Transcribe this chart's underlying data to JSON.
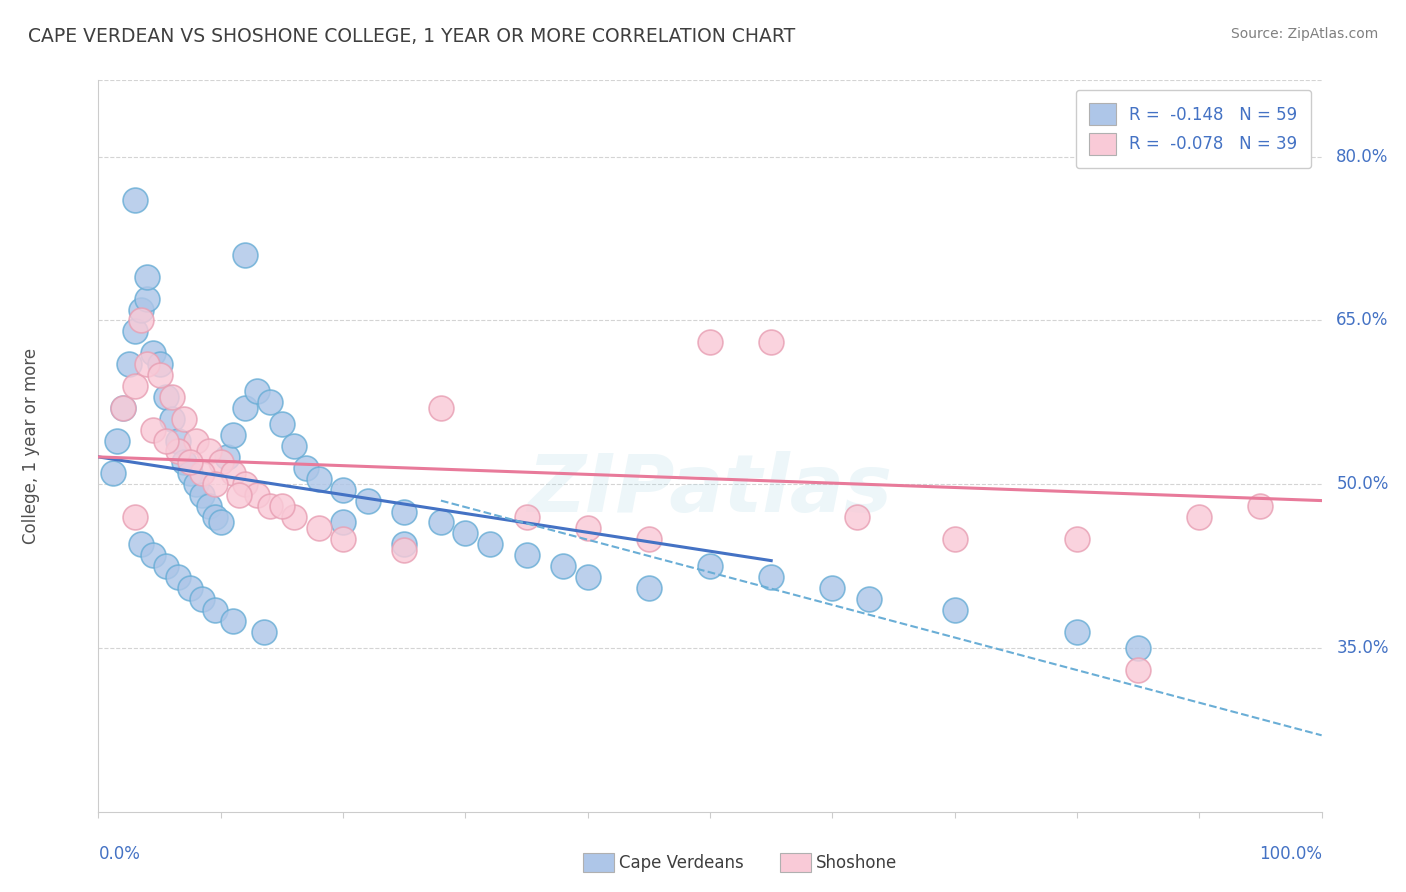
{
  "title": "CAPE VERDEAN VS SHOSHONE COLLEGE, 1 YEAR OR MORE CORRELATION CHART",
  "source_text": "Source: ZipAtlas.com",
  "ylabel": "College, 1 year or more",
  "xmin": 0.0,
  "xmax": 100.0,
  "ymin": 20.0,
  "ymax": 87.0,
  "right_yticks": [
    35.0,
    50.0,
    65.0,
    80.0
  ],
  "right_ytick_labels": [
    "35.0%",
    "50.0%",
    "65.0%",
    "80.0%"
  ],
  "legend_entries": [
    {
      "label": "R =  -0.148   N = 59",
      "color": "#aec6e8"
    },
    {
      "label": "R =  -0.078   N = 39",
      "color": "#f4b8c8"
    }
  ],
  "legend_bottom_labels": [
    "Cape Verdeans",
    "Shoshone"
  ],
  "blue_scatter_color": "#aec6e8",
  "pink_scatter_color": "#f9cad7",
  "blue_edge_color": "#6aaed6",
  "pink_edge_color": "#e8a0b4",
  "blue_line_color": "#4472c4",
  "pink_line_color": "#e87a9a",
  "dashed_line_color": "#6aaed6",
  "watermark_text": "ZIPatlas",
  "blue_points_x": [
    1.2,
    1.5,
    2.0,
    2.5,
    3.0,
    3.5,
    4.0,
    4.5,
    5.0,
    5.5,
    6.0,
    6.5,
    7.0,
    7.5,
    8.0,
    8.5,
    9.0,
    9.5,
    10.0,
    10.5,
    11.0,
    12.0,
    13.0,
    14.0,
    15.0,
    16.0,
    17.0,
    18.0,
    20.0,
    22.0,
    25.0,
    28.0,
    30.0,
    32.0,
    35.0,
    38.0,
    40.0,
    45.0,
    12.0,
    3.5,
    4.5,
    5.5,
    6.5,
    7.5,
    8.5,
    9.5,
    11.0,
    13.5,
    3.0,
    4.0,
    20.0,
    25.0,
    50.0,
    55.0,
    60.0,
    63.0,
    70.0,
    80.0,
    85.0
  ],
  "blue_points_y": [
    51.0,
    54.0,
    57.0,
    61.0,
    64.0,
    66.0,
    67.0,
    62.0,
    61.0,
    58.0,
    56.0,
    54.0,
    52.0,
    51.0,
    50.0,
    49.0,
    48.0,
    47.0,
    46.5,
    52.5,
    54.5,
    57.0,
    58.5,
    57.5,
    55.5,
    53.5,
    51.5,
    50.5,
    49.5,
    48.5,
    47.5,
    46.5,
    45.5,
    44.5,
    43.5,
    42.5,
    41.5,
    40.5,
    71.0,
    44.5,
    43.5,
    42.5,
    41.5,
    40.5,
    39.5,
    38.5,
    37.5,
    36.5,
    76.0,
    69.0,
    46.5,
    44.5,
    42.5,
    41.5,
    40.5,
    39.5,
    38.5,
    36.5,
    35.0
  ],
  "pink_points_x": [
    2.0,
    3.0,
    4.0,
    5.0,
    6.0,
    7.0,
    8.0,
    9.0,
    10.0,
    11.0,
    12.0,
    13.0,
    14.0,
    16.0,
    18.0,
    20.0,
    25.0,
    28.0,
    35.0,
    40.0,
    45.0,
    50.0,
    55.0,
    4.5,
    6.5,
    8.5,
    3.5,
    5.5,
    7.5,
    9.5,
    11.5,
    15.0,
    62.0,
    70.0,
    80.0,
    85.0,
    90.0,
    95.0,
    3.0
  ],
  "pink_points_y": [
    57.0,
    59.0,
    61.0,
    60.0,
    58.0,
    56.0,
    54.0,
    53.0,
    52.0,
    51.0,
    50.0,
    49.0,
    48.0,
    47.0,
    46.0,
    45.0,
    44.0,
    57.0,
    47.0,
    46.0,
    45.0,
    63.0,
    63.0,
    55.0,
    53.0,
    51.0,
    65.0,
    54.0,
    52.0,
    50.0,
    49.0,
    48.0,
    47.0,
    45.0,
    45.0,
    33.0,
    47.0,
    48.0,
    47.0
  ],
  "blue_line_x": [
    0.0,
    55.0
  ],
  "blue_line_y": [
    52.5,
    43.0
  ],
  "pink_line_x": [
    0.0,
    100.0
  ],
  "pink_line_y": [
    52.5,
    48.5
  ],
  "dashed_line_x": [
    28.0,
    100.0
  ],
  "dashed_line_y": [
    48.5,
    27.0
  ],
  "background_color": "#ffffff",
  "grid_color": "#d4d4d4",
  "title_color": "#3f3f3f",
  "axis_label_color": "#4472c4",
  "source_color": "#808080"
}
